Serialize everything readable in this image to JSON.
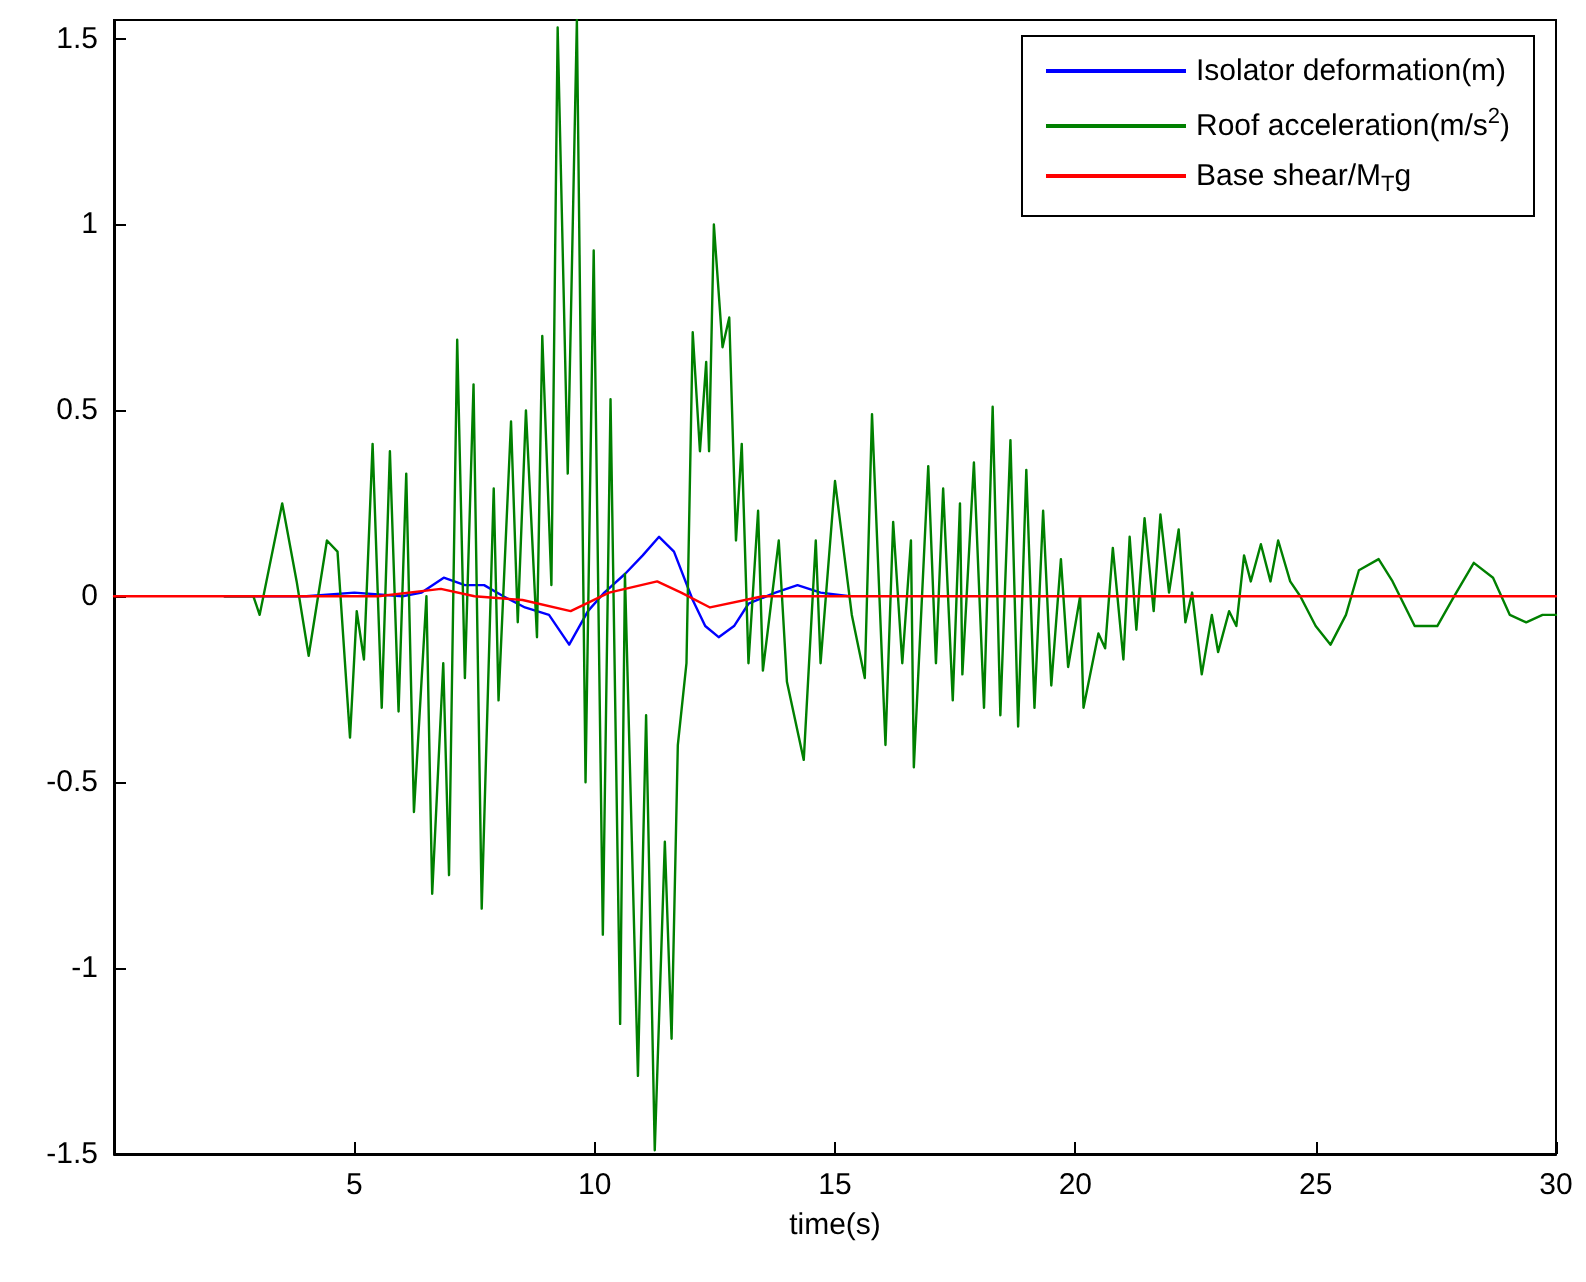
{
  "chart_data": {
    "type": "line",
    "xlabel": "time(s)",
    "xlim": [
      0,
      30
    ],
    "xticks": [
      5,
      10,
      15,
      20,
      25,
      30
    ],
    "ylim": [
      -1.5,
      1.55
    ],
    "yticks": [
      -1.5,
      -1,
      -0.5,
      0,
      0.5,
      1,
      1.5
    ],
    "grid": false,
    "legend": "top right",
    "marker": "none",
    "line_style": "solid",
    "series": [
      {
        "name": "Isolator deformation(m)",
        "color": "#0000ff",
        "x": [
          2.3,
          4,
          5,
          6,
          6.4,
          6.86,
          7.3,
          7.7,
          8.1,
          8.55,
          9.05,
          9.47,
          9.86,
          10.2,
          10.63,
          11.0,
          11.34,
          11.65,
          12.04,
          12.3,
          12.58,
          12.9,
          13.2,
          13.76,
          14.22,
          14.7,
          15.3
        ],
        "values": [
          0,
          0,
          0.01,
          0,
          0.01,
          0.05,
          0.03,
          0.03,
          0,
          -0.03,
          -0.05,
          -0.13,
          -0.04,
          0.01,
          0.06,
          0.11,
          0.16,
          0.12,
          -0.01,
          -0.08,
          -0.11,
          -0.08,
          -0.02,
          0.01,
          0.03,
          0.01,
          0
        ]
      },
      {
        "name": "Roof acceleration(m/s$^{2}$)",
        "color": "#008000",
        "x": [
          2.3,
          2.9,
          3.03,
          3.5,
          3.8,
          4.05,
          4.43,
          4.65,
          4.91,
          5.05,
          5.2,
          5.38,
          5.57,
          5.74,
          5.92,
          6.08,
          6.24,
          6.5,
          6.62,
          6.85,
          6.97,
          7.14,
          7.3,
          7.48,
          7.65,
          7.9,
          8.0,
          8.26,
          8.4,
          8.57,
          8.8,
          8.91,
          9.1,
          9.23,
          9.44,
          9.63,
          9.81,
          9.98,
          10.17,
          10.33,
          10.53,
          10.63,
          10.9,
          11.07,
          11.25,
          11.46,
          11.6,
          11.73,
          11.91,
          12.04,
          12.19,
          12.32,
          12.38,
          12.48,
          12.66,
          12.8,
          12.94,
          13.06,
          13.2,
          13.4,
          13.5,
          13.83,
          14.0,
          14.35,
          14.6,
          14.7,
          15.0,
          15.35,
          15.62,
          15.77,
          16.05,
          16.21,
          16.4,
          16.58,
          16.64,
          16.94,
          17.1,
          17.25,
          17.45,
          17.6,
          17.65,
          17.89,
          18.1,
          18.28,
          18.44,
          18.65,
          18.81,
          18.98,
          19.15,
          19.33,
          19.5,
          19.7,
          19.85,
          20.1,
          20.17,
          20.48,
          20.62,
          20.78,
          21.0,
          21.13,
          21.27,
          21.44,
          21.63,
          21.77,
          21.95,
          22.15,
          22.29,
          22.43,
          22.63,
          22.84,
          22.97,
          23.2,
          23.35,
          23.51,
          23.65,
          23.86,
          24.06,
          24.22,
          24.47,
          24.68,
          25.0,
          25.31,
          25.63,
          25.9,
          26.31,
          26.6,
          27.06,
          27.53,
          27.88,
          28.29,
          28.69,
          29.04,
          29.38,
          29.72,
          30
        ],
        "values": [
          0,
          0,
          -0.05,
          0.25,
          0.04,
          -0.16,
          0.15,
          0.12,
          -0.38,
          -0.04,
          -0.17,
          0.41,
          -0.3,
          0.39,
          -0.31,
          0.33,
          -0.58,
          0,
          -0.8,
          -0.18,
          -0.75,
          0.69,
          -0.22,
          0.57,
          -0.84,
          0.29,
          -0.28,
          0.47,
          -0.07,
          0.5,
          -0.11,
          0.7,
          0.03,
          1.53,
          0.33,
          1.55,
          -0.5,
          0.93,
          -0.91,
          0.53,
          -1.15,
          0.06,
          -1.29,
          -0.32,
          -1.49,
          -0.66,
          -1.19,
          -0.4,
          -0.18,
          0.71,
          0.39,
          0.63,
          0.39,
          1.0,
          0.67,
          0.75,
          0.15,
          0.41,
          -0.18,
          0.23,
          -0.2,
          0.15,
          -0.23,
          -0.44,
          0.15,
          -0.18,
          0.31,
          -0.05,
          -0.22,
          0.49,
          -0.4,
          0.2,
          -0.18,
          0.15,
          -0.46,
          0.35,
          -0.18,
          0.29,
          -0.28,
          0.25,
          -0.21,
          0.36,
          -0.3,
          0.51,
          -0.32,
          0.42,
          -0.35,
          0.34,
          -0.3,
          0.23,
          -0.24,
          0.1,
          -0.19,
          0,
          -0.3,
          -0.1,
          -0.14,
          0.13,
          -0.17,
          0.16,
          -0.09,
          0.21,
          -0.04,
          0.22,
          0.01,
          0.18,
          -0.07,
          0.01,
          -0.21,
          -0.05,
          -0.15,
          -0.04,
          -0.08,
          0.11,
          0.04,
          0.14,
          0.04,
          0.15,
          0.04,
          0,
          -0.08,
          -0.13,
          -0.05,
          0.07,
          0.1,
          0.04,
          -0.08,
          -0.08,
          0,
          0.09,
          0.05,
          -0.05,
          -0.07,
          -0.05,
          -0.05
        ]
      },
      {
        "name": "Base shear/M$_{T}$g",
        "color": "#ff0000",
        "x": [
          0,
          4,
          5.5,
          6.8,
          7.5,
          8.5,
          9.5,
          10.3,
          11.3,
          11.8,
          12.4,
          13.5,
          15,
          30
        ],
        "values": [
          0,
          0,
          0,
          0.02,
          0,
          -0.01,
          -0.04,
          0.01,
          0.04,
          0.01,
          -0.03,
          0,
          0,
          0
        ]
      }
    ]
  }
}
